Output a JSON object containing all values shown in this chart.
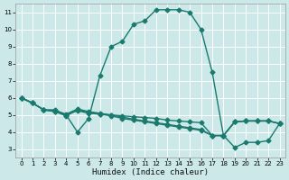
{
  "bg_color": "#cce8e8",
  "grid_color": "#ffffff",
  "line_color": "#1a7a6e",
  "marker": "D",
  "markersize": 2.5,
  "linewidth": 1.0,
  "xlabel": "Humidex (Indice chaleur)",
  "xlim": [
    -0.5,
    23.5
  ],
  "ylim": [
    2.5,
    11.5
  ],
  "xticks": [
    0,
    1,
    2,
    3,
    4,
    5,
    6,
    7,
    8,
    9,
    10,
    11,
    12,
    13,
    14,
    15,
    16,
    17,
    18,
    19,
    20,
    21,
    22,
    23
  ],
  "yticks": [
    3,
    4,
    5,
    6,
    7,
    8,
    9,
    10,
    11
  ],
  "series1_x": [
    0,
    1,
    2,
    3,
    4,
    5,
    6,
    7,
    8,
    9,
    10,
    11,
    12,
    13,
    14,
    15,
    16,
    17,
    18,
    19,
    20,
    21,
    22,
    23
  ],
  "series1_y": [
    6.0,
    5.7,
    5.3,
    5.3,
    5.0,
    4.0,
    4.8,
    7.3,
    9.0,
    9.3,
    10.3,
    10.5,
    11.15,
    11.15,
    11.15,
    11.0,
    10.0,
    7.5,
    3.8,
    3.1,
    3.4,
    3.4,
    3.5,
    4.5
  ],
  "series2_x": [
    0,
    1,
    2,
    3,
    4,
    5,
    6,
    7,
    8,
    9,
    10,
    11,
    12,
    13,
    14,
    15,
    16,
    17,
    18,
    19,
    20,
    21,
    22,
    23
  ],
  "series2_y": [
    6.0,
    5.7,
    5.3,
    5.2,
    5.0,
    5.25,
    5.1,
    5.05,
    5.0,
    4.95,
    4.9,
    4.85,
    4.8,
    4.7,
    4.65,
    4.6,
    4.55,
    3.8,
    3.8,
    4.6,
    4.65,
    4.65,
    4.65,
    4.5
  ],
  "series3_x": [
    0,
    1,
    2,
    3,
    4,
    5,
    6,
    7,
    8,
    9,
    10,
    11,
    12,
    13,
    14,
    15,
    16,
    17,
    18,
    19,
    20,
    21,
    22,
    23
  ],
  "series3_y": [
    6.0,
    5.7,
    5.3,
    5.2,
    4.95,
    5.3,
    5.15,
    5.05,
    4.95,
    4.8,
    4.7,
    4.6,
    4.5,
    4.4,
    4.3,
    4.2,
    4.1,
    3.8,
    3.8,
    4.6,
    4.65,
    4.65,
    4.65,
    4.5
  ],
  "series4_x": [
    0,
    1,
    2,
    3,
    4,
    5,
    6,
    7,
    8,
    9,
    10,
    11,
    12,
    13,
    14,
    15,
    16,
    17,
    18,
    19,
    20,
    21,
    22,
    23
  ],
  "series4_y": [
    6.0,
    5.7,
    5.3,
    5.25,
    5.05,
    5.35,
    5.2,
    5.1,
    5.0,
    4.88,
    4.75,
    4.65,
    4.55,
    4.45,
    4.35,
    4.25,
    4.15,
    3.8,
    3.8,
    4.6,
    4.65,
    4.65,
    4.65,
    4.5
  ]
}
